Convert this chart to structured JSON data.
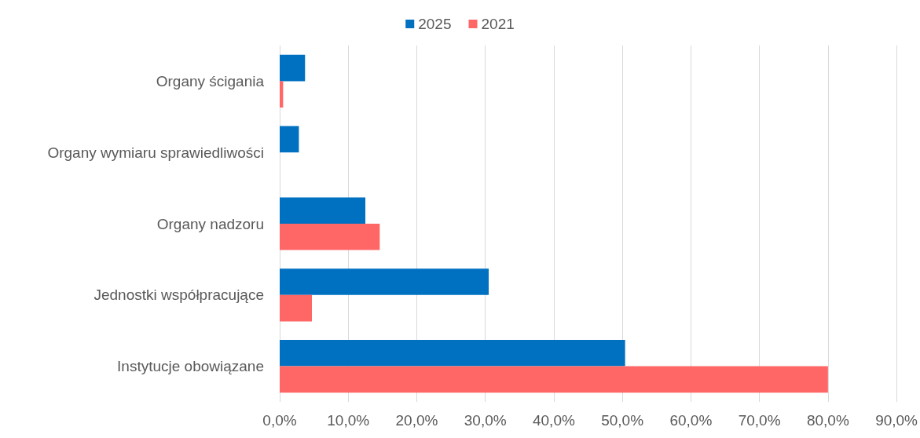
{
  "chart_data": {
    "type": "bar",
    "orientation": "horizontal",
    "categories": [
      "Organy ścigania",
      "Organy wymiaru sprawiedliwości",
      "Organy nadzoru",
      "Jednostki współpracujące",
      "Instytucje obowiązane"
    ],
    "series": [
      {
        "name": "2025",
        "color": "#0070c0",
        "values": [
          3.7,
          2.8,
          12.5,
          30.5,
          50.4
        ]
      },
      {
        "name": "2021",
        "color": "#ff6666",
        "values": [
          0.5,
          null,
          14.6,
          4.7,
          80.0
        ]
      }
    ],
    "xlim": [
      0,
      90
    ],
    "xticks": [
      {
        "value": 0,
        "label": "0,0%"
      },
      {
        "value": 10,
        "label": "10,0%"
      },
      {
        "value": 20,
        "label": "20,0%"
      },
      {
        "value": 30,
        "label": "30,0%"
      },
      {
        "value": 40,
        "label": "40,0%"
      },
      {
        "value": 50,
        "label": "50,0%"
      },
      {
        "value": 60,
        "label": "60,0%"
      },
      {
        "value": 70,
        "label": "70,0%"
      },
      {
        "value": 80,
        "label": "80,0%"
      },
      {
        "value": 90,
        "label": "90,0%"
      }
    ],
    "grid": "x",
    "legend": "top"
  }
}
